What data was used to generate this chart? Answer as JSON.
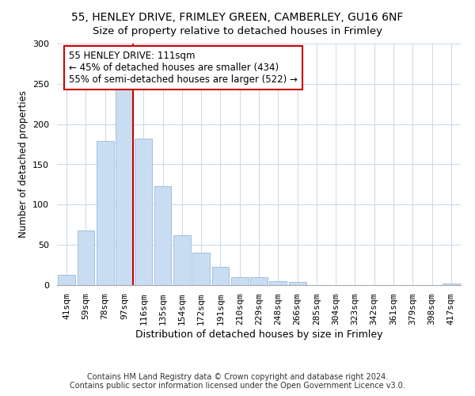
{
  "title": "55, HENLEY DRIVE, FRIMLEY GREEN, CAMBERLEY, GU16 6NF",
  "subtitle": "Size of property relative to detached houses in Frimley",
  "xlabel": "Distribution of detached houses by size in Frimley",
  "ylabel": "Number of detached properties",
  "bar_labels": [
    "41sqm",
    "59sqm",
    "78sqm",
    "97sqm",
    "116sqm",
    "135sqm",
    "154sqm",
    "172sqm",
    "191sqm",
    "210sqm",
    "229sqm",
    "248sqm",
    "266sqm",
    "285sqm",
    "304sqm",
    "323sqm",
    "342sqm",
    "361sqm",
    "379sqm",
    "398sqm",
    "417sqm"
  ],
  "bar_values": [
    13,
    68,
    179,
    246,
    182,
    123,
    62,
    40,
    23,
    10,
    10,
    5,
    4,
    0,
    0,
    0,
    0,
    0,
    0,
    0,
    2
  ],
  "bar_color": "#c9ddf2",
  "bar_edge_color": "#9ab8d8",
  "vline_color": "#cc0000",
  "annotation_text": "55 HENLEY DRIVE: 111sqm\n← 45% of detached houses are smaller (434)\n55% of semi-detached houses are larger (522) →",
  "annotation_box_facecolor": "#ffffff",
  "annotation_box_edgecolor": "#cc0000",
  "ylim": [
    0,
    300
  ],
  "yticks": [
    0,
    50,
    100,
    150,
    200,
    250,
    300
  ],
  "footnote1": "Contains HM Land Registry data © Crown copyright and database right 2024.",
  "footnote2": "Contains public sector information licensed under the Open Government Licence v3.0.",
  "title_fontsize": 10,
  "subtitle_fontsize": 9.5,
  "xlabel_fontsize": 9,
  "ylabel_fontsize": 8.5,
  "tick_fontsize": 8,
  "annotation_fontsize": 8.5,
  "footnote_fontsize": 7
}
